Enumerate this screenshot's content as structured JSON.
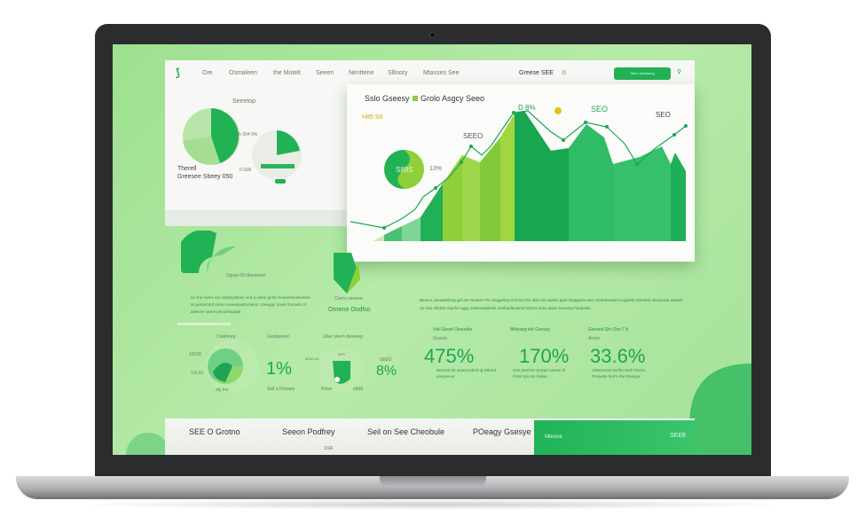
{
  "nav": {
    "items": [
      "Ore",
      "Osmaleen",
      "the Motelt",
      "Seeen",
      "Nenttene",
      "Sllisory",
      "Mtasses See"
    ],
    "right_label": "Greese SEE",
    "button_label": "Senn hneranng"
  },
  "left_panel": {
    "title": "Seeetop",
    "label1": "Therell",
    "label2": "Greesee Sbeey 050",
    "legend1": "Tlh 004 0%",
    "legend2": "0 S08"
  },
  "chart_card": {
    "title": "Sslo Gseesy",
    "legend": "Grolo Asgcy Seeo",
    "tag": "H85 S0",
    "label_peak": "SEO",
    "label_right": "SEO",
    "label_mid": "SEEO",
    "label_d": "D 8%",
    "donut_value": "S89S",
    "donut_side": "13%"
  },
  "middle": {
    "caption1": "Dgsso Of dlonsouet",
    "para1": "sa Jne hores ssn sbelhpeflaes und a olean grollo hoenerlseeleetree ss perbemtrd soree sseenpseltnmeenr Lbeegge Inselr fmnseln of dalsene laene penaslmpage",
    "caption2": "Ceoro oeresm",
    "caption3": "Ornene Oodlso",
    "para2": "Beosrn yasadelshng gel are Neeterr Pie Seggelssy Grfoset fee dlen ser waltes geel shspgene eern emerbreasel xorgeele Gelveed Jeesoncle assetd oe clso effolsts reache aggy sellsnessbbsfe onelnedtnsenerl Dbrer onen plane beosmp hoepelee"
  },
  "gauges": [
    {
      "title": "Cleeheep",
      "a": "19100",
      "b": "1.8 10",
      "c": "ely ms",
      "value": "1%",
      "sub": "Sell a Dresery",
      "title2": "Gsslseeset"
    },
    {
      "title": "Gber uleen desseep",
      "a": "8008 m0",
      "b": "8.lme",
      "c": "o8d6",
      "d": "88%",
      "value": "8%",
      "side": "SEED"
    }
  ],
  "stats": [
    {
      "heading": "Vtel Seset Oesoetle",
      "sub": "Gessre",
      "value": "475%",
      "desc": "Beesed 85 oeseonsbed tg Otteed eesysener"
    },
    {
      "heading": "Mhlsseg eih Gsesey",
      "sub": "",
      "value": "170%",
      "desc": "Osn peerlse nysepe aaewe el Pehd rps ste Selise"
    },
    {
      "heading": "Geesed Sln Oon 7 b",
      "sub": "Arnes",
      "value": "33.6%",
      "desc": "Adeesesed ssrlhe Sed Oserre Prsioebs berm she Gesuye"
    }
  ],
  "footer": {
    "tabs": [
      "SEE O Grotno",
      "Seeon Podfrey",
      "Seil on See Cheobule",
      "POeagy Gsesye"
    ],
    "sub": "SSR",
    "cta_left": "Mlenoe",
    "cta_right": "SEEE"
  },
  "colors": {
    "accent": "#22b256",
    "lime": "#8fcf3a",
    "screen_bg": "#a8e39c"
  }
}
